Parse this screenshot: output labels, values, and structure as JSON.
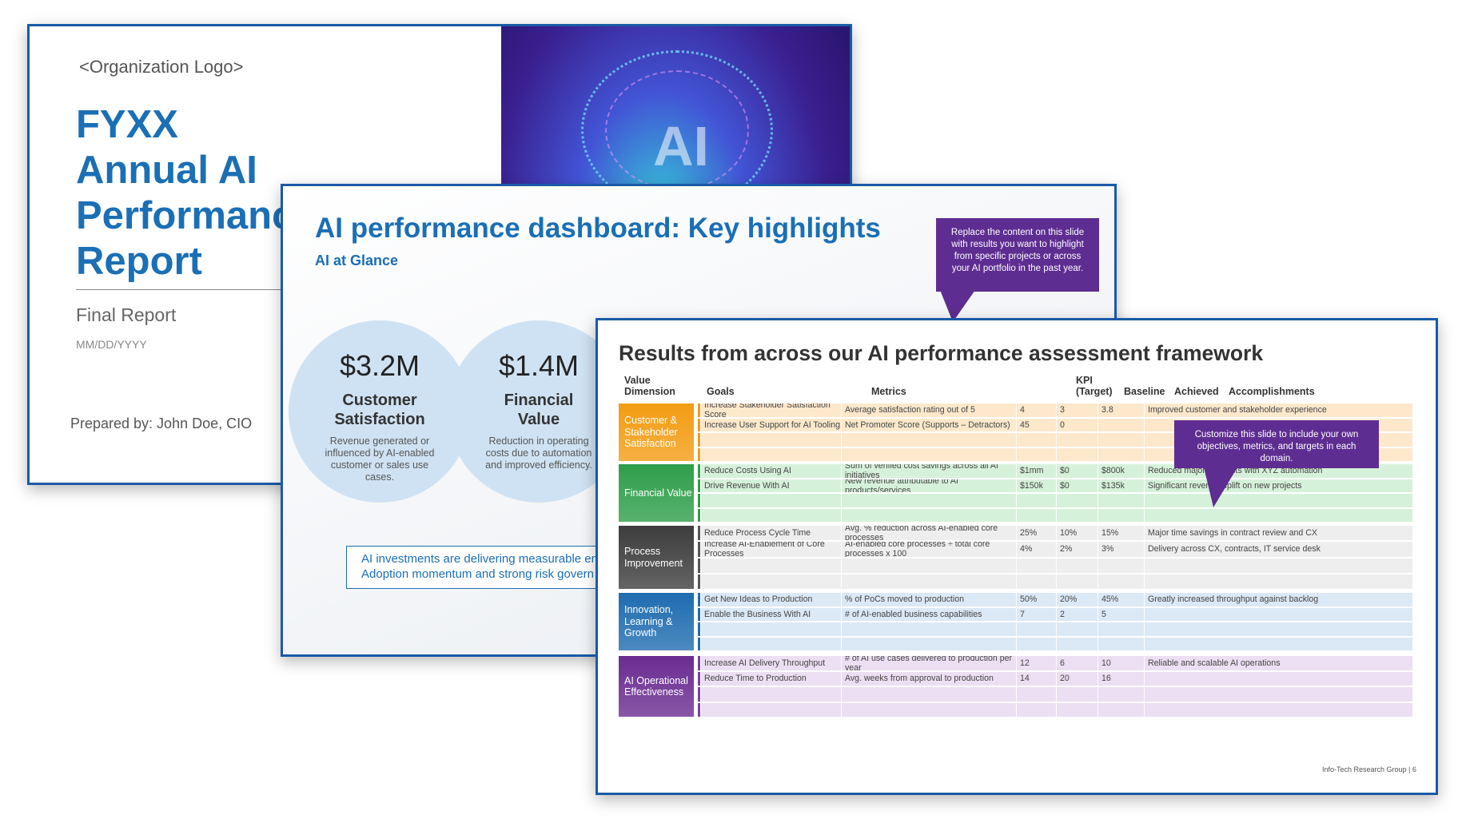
{
  "slide1": {
    "logo": "<Organization Logo>",
    "title_lines": [
      "FYXX",
      "Annual AI",
      "Performance",
      "Report"
    ],
    "subtitle": "Final Report",
    "date": "MM/DD/YYYY",
    "prepared_by": "Prepared by: John Doe, CIO",
    "hero_text": "AI"
  },
  "slide2": {
    "title": "AI performance dashboard: Key highlights",
    "subtitle": "AI at Glance",
    "callout": "Replace the content on this slide with results you want to highlight from specific projects or across your AI portfolio in the past year.",
    "kpis": [
      {
        "value": "$3.2M",
        "label": "Customer Satisfaction",
        "description": "Revenue generated or influenced by AI-enabled customer or sales use cases."
      },
      {
        "value": "$1.4M",
        "label": "Financial Value",
        "description": "Reduction in operating costs due to automation and improved efficiency."
      }
    ],
    "banner_lines": [
      "AI investments are delivering measurable en",
      "Adoption momentum and strong risk govern"
    ]
  },
  "slide3": {
    "title": "Results from across our AI performance assessment framework",
    "headers": {
      "dimension": "Value Dimension",
      "goals": "Goals",
      "metrics": "Metrics",
      "kpi": "KPI (Target)",
      "baseline": "Baseline",
      "achieved": "Achieved",
      "accomplishments": "Accomplishments"
    },
    "callout": "Customize this slide to include your own objectives, metrics, and targets in each domain.",
    "footer": "Info-Tech Research Group  |  6",
    "dimensions": [
      {
        "name": "Customer & Stakeholder Satisfaction",
        "color": "#f39c12",
        "row_color": "#fde8cc",
        "bar_color": "#f39c12",
        "rows": [
          {
            "goal": "Increase Stakeholder Satisfaction Score",
            "metric": "Average satisfaction rating out of 5",
            "kpi": "4",
            "baseline": "3",
            "achieved": "3.8",
            "accomplishment": "Improved customer and stakeholder experience"
          },
          {
            "goal": "Increase User Support for AI Tooling",
            "metric": "Net Promoter Score (Supports – Detractors)",
            "kpi": "45",
            "baseline": "0",
            "achieved": "",
            "accomplishment": ""
          },
          {
            "goal": "",
            "metric": "",
            "kpi": "",
            "baseline": "",
            "achieved": "",
            "accomplishment": ""
          },
          {
            "goal": "",
            "metric": "",
            "kpi": "",
            "baseline": "",
            "achieved": "",
            "accomplishment": ""
          }
        ]
      },
      {
        "name": "Financial Value",
        "color": "#2e9e4a",
        "row_color": "#d6f1da",
        "bar_color": "#2e9e4a",
        "rows": [
          {
            "goal": "Reduce Costs Using AI",
            "metric": "Sum of verified cost savings across all AI initiatives",
            "kpi": "$1mm",
            "baseline": "$0",
            "achieved": "$800k",
            "accomplishment": "Reduced major contracts with XYZ automation"
          },
          {
            "goal": "Drive Revenue With AI",
            "metric": "New revenue attributable to AI products/services",
            "kpi": "$150k",
            "baseline": "$0",
            "achieved": "$135k",
            "accomplishment": "Significant revenue uplift on new projects"
          },
          {
            "goal": "",
            "metric": "",
            "kpi": "",
            "baseline": "",
            "achieved": "",
            "accomplishment": ""
          },
          {
            "goal": "",
            "metric": "",
            "kpi": "",
            "baseline": "",
            "achieved": "",
            "accomplishment": ""
          }
        ]
      },
      {
        "name": "Process Improvement",
        "color": "#3d3d3d",
        "row_color": "#eeeeee",
        "bar_color": "#555555",
        "rows": [
          {
            "goal": "Reduce Process Cycle Time",
            "metric": "Avg. % reduction across AI-enabled core processes",
            "kpi": "25%",
            "baseline": "10%",
            "achieved": "15%",
            "accomplishment": "Major time savings in contract review and CX"
          },
          {
            "goal": "Increase AI-Enablement of Core Processes",
            "metric": "AI-enabled core processes ÷ total core processes x 100",
            "kpi": "4%",
            "baseline": "2%",
            "achieved": "3%",
            "accomplishment": "Delivery across CX, contracts, IT service desk"
          },
          {
            "goal": "",
            "metric": "",
            "kpi": "",
            "baseline": "",
            "achieved": "",
            "accomplishment": ""
          },
          {
            "goal": "",
            "metric": "",
            "kpi": "",
            "baseline": "",
            "achieved": "",
            "accomplishment": ""
          }
        ]
      },
      {
        "name": "Innovation, Learning & Growth",
        "color": "#1f6cb0",
        "row_color": "#dbe8f6",
        "bar_color": "#1f6cb0",
        "rows": [
          {
            "goal": "Get New Ideas to Production",
            "metric": "% of PoCs moved to production",
            "kpi": "50%",
            "baseline": "20%",
            "achieved": "45%",
            "accomplishment": "Greatly increased throughput against backlog"
          },
          {
            "goal": "Enable the Business With AI",
            "metric": "# of AI-enabled business capabilities",
            "kpi": "7",
            "baseline": "2",
            "achieved": "5",
            "accomplishment": ""
          },
          {
            "goal": "",
            "metric": "",
            "kpi": "",
            "baseline": "",
            "achieved": "",
            "accomplishment": ""
          },
          {
            "goal": "",
            "metric": "",
            "kpi": "",
            "baseline": "",
            "achieved": "",
            "accomplishment": ""
          }
        ]
      },
      {
        "name": "AI Operational Effectiveness",
        "color": "#6a2c91",
        "row_color": "#ecdff3",
        "bar_color": "#7b3fa5",
        "rows": [
          {
            "goal": "Increase AI Delivery Throughput",
            "metric": "# of AI use cases delivered to production per year",
            "kpi": "12",
            "baseline": "6",
            "achieved": "10",
            "accomplishment": "Reliable and scalable AI operations"
          },
          {
            "goal": "Reduce Time to Production",
            "metric": "Avg. weeks from approval to production",
            "kpi": "14",
            "baseline": "20",
            "achieved": "16",
            "accomplishment": ""
          },
          {
            "goal": "",
            "metric": "",
            "kpi": "",
            "baseline": "",
            "achieved": "",
            "accomplishment": ""
          },
          {
            "goal": "",
            "metric": "",
            "kpi": "",
            "baseline": "",
            "achieved": "",
            "accomplishment": ""
          }
        ]
      }
    ]
  }
}
